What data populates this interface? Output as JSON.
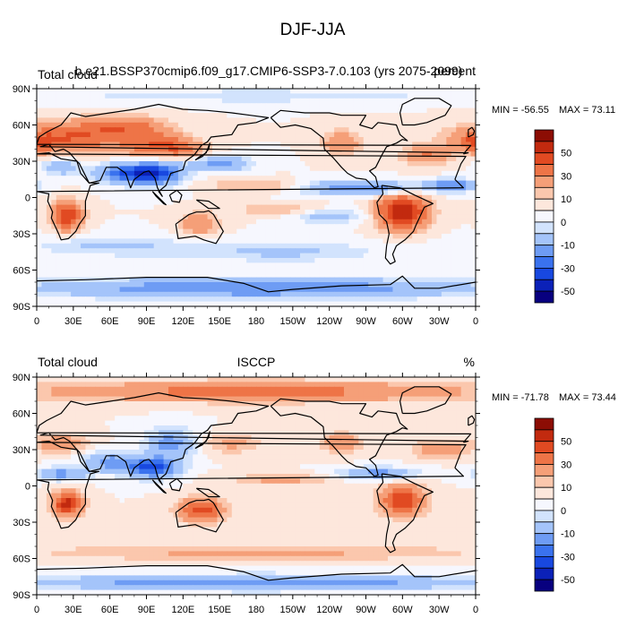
{
  "figure": {
    "title": "DJF-JJA"
  },
  "colors": {
    "land_outline": "#000000",
    "background": "#ffffff",
    "levels": [
      "#08007f",
      "#0b21b8",
      "#1848e0",
      "#3a72ee",
      "#6e9cf4",
      "#a4c4fa",
      "#d2e3fd",
      "#f6f7fe",
      "#fde7dc",
      "#fbc7ad",
      "#f59f78",
      "#ee7447",
      "#e14a22",
      "#c22a0f",
      "#8c0d04"
    ]
  },
  "colorbar": {
    "tick_labels": [
      "50",
      "30",
      "10",
      "0",
      "-10",
      "-30",
      "-50"
    ]
  },
  "axes": {
    "lat_labels": [
      "90N",
      "60N",
      "30N",
      "0",
      "30S",
      "60S",
      "90S"
    ],
    "lon_labels": [
      "0",
      "30E",
      "60E",
      "90E",
      "120E",
      "150E",
      "180",
      "150W",
      "120W",
      "90W",
      "60W",
      "30W",
      "0"
    ]
  },
  "panels": [
    {
      "left_label": "Total cloud",
      "center_label": "b.e21.BSSP370cmip6.f09_g17.CMIP6-SSP3-7.0.103 (yrs 2075-2099)",
      "right_label": "percent",
      "min_label": "MIN = -56.55",
      "max_label": "MAX =  73.11"
    },
    {
      "left_label": "Total cloud",
      "center_label": "ISCCP",
      "right_label": "%",
      "min_label": "MIN = -71.78",
      "max_label": "MAX =  73.44"
    }
  ],
  "chart_data": [
    {
      "type": "heatmap",
      "title": "Total cloud DJF-JJA, b.e21.BSSP370cmip6.f09_g17.CMIP6-SSP3-7.0.103 (yrs 2075-2099)",
      "units": "percent",
      "x_range": [
        0,
        360
      ],
      "y_range": [
        -90,
        90
      ],
      "min": -56.55,
      "max": 73.11,
      "levels": [
        -60,
        -50,
        -40,
        -30,
        -20,
        -10,
        -5,
        0,
        5,
        10,
        20,
        30,
        40,
        50,
        60
      ],
      "features": [
        {
          "lon": 30,
          "lat": 50,
          "value": 30,
          "rx": 45,
          "ry": 12
        },
        {
          "lon": 95,
          "lat": 45,
          "value": 25,
          "rx": 25,
          "ry": 12
        },
        {
          "lon": 70,
          "lat": 60,
          "value": 20,
          "rx": 30,
          "ry": 8
        },
        {
          "lon": 120,
          "lat": 40,
          "value": 20,
          "rx": 20,
          "ry": 8
        },
        {
          "lon": 0,
          "lat": 45,
          "value": 20,
          "rx": 15,
          "ry": 8
        },
        {
          "lon": 75,
          "lat": 20,
          "value": -40,
          "rx": 25,
          "ry": 8
        },
        {
          "lon": 100,
          "lat": 20,
          "value": -35,
          "rx": 20,
          "ry": 10
        },
        {
          "lon": 20,
          "lat": 25,
          "value": -20,
          "rx": 15,
          "ry": 6
        },
        {
          "lon": 150,
          "lat": 28,
          "value": -25,
          "rx": 25,
          "ry": 6
        },
        {
          "lon": 25,
          "lat": -15,
          "value": 40,
          "rx": 12,
          "ry": 12
        },
        {
          "lon": 133,
          "lat": -22,
          "value": 20,
          "rx": 15,
          "ry": 9
        },
        {
          "lon": 300,
          "lat": -12,
          "value": 50,
          "rx": 20,
          "ry": 14
        },
        {
          "lon": 250,
          "lat": 45,
          "value": 20,
          "rx": 15,
          "ry": 10
        },
        {
          "lon": 320,
          "lat": 35,
          "value": 20,
          "rx": 20,
          "ry": 8
        },
        {
          "lon": 265,
          "lat": 8,
          "value": -30,
          "rx": 45,
          "ry": 6
        },
        {
          "lon": 340,
          "lat": 10,
          "value": -30,
          "rx": 20,
          "ry": 5
        },
        {
          "lon": 240,
          "lat": -15,
          "value": -15,
          "rx": 30,
          "ry": 6
        },
        {
          "lon": 180,
          "lat": 10,
          "value": 12,
          "rx": 40,
          "ry": 5
        },
        {
          "lon": 200,
          "lat": -10,
          "value": 10,
          "rx": 40,
          "ry": 5
        },
        {
          "lon": 60,
          "lat": -40,
          "value": -12,
          "rx": 60,
          "ry": 8
        },
        {
          "lon": 200,
          "lat": -45,
          "value": -12,
          "rx": 80,
          "ry": 8
        },
        {
          "lon": 180,
          "lat": -75,
          "value": -30,
          "rx": 180,
          "ry": 8
        },
        {
          "lon": 180,
          "lat": 84,
          "value": -8,
          "rx": 180,
          "ry": 6
        }
      ]
    },
    {
      "type": "heatmap",
      "title": "Total cloud DJF-JJA, ISCCP",
      "units": "%",
      "x_range": [
        0,
        360
      ],
      "y_range": [
        -90,
        90
      ],
      "min": -71.78,
      "max": 73.44,
      "levels": [
        -60,
        -50,
        -40,
        -30,
        -20,
        -10,
        -5,
        0,
        5,
        10,
        20,
        30,
        40,
        50,
        60
      ],
      "features": [
        {
          "lon": 180,
          "lat": 78,
          "value": 25,
          "rx": 180,
          "ry": 8
        },
        {
          "lon": 25,
          "lat": -15,
          "value": 45,
          "rx": 12,
          "ry": 10
        },
        {
          "lon": 135,
          "lat": -20,
          "value": 35,
          "rx": 18,
          "ry": 10
        },
        {
          "lon": 300,
          "lat": -12,
          "value": 40,
          "rx": 18,
          "ry": 12
        },
        {
          "lon": 95,
          "lat": 15,
          "value": -45,
          "rx": 20,
          "ry": 8
        },
        {
          "lon": 110,
          "lat": 35,
          "value": -25,
          "rx": 20,
          "ry": 12
        },
        {
          "lon": 60,
          "lat": 20,
          "value": -25,
          "rx": 20,
          "ry": 8
        },
        {
          "lon": 20,
          "lat": 10,
          "value": -25,
          "rx": 20,
          "ry": 5
        },
        {
          "lon": 20,
          "lat": 35,
          "value": 20,
          "rx": 20,
          "ry": 7
        },
        {
          "lon": 330,
          "lat": 30,
          "value": 20,
          "rx": 20,
          "ry": 7
        },
        {
          "lon": 250,
          "lat": 35,
          "value": 20,
          "rx": 15,
          "ry": 8
        },
        {
          "lon": 160,
          "lat": 35,
          "value": 12,
          "rx": 25,
          "ry": 8
        },
        {
          "lon": 280,
          "lat": 10,
          "value": -25,
          "rx": 30,
          "ry": 5
        },
        {
          "lon": 200,
          "lat": 5,
          "value": 12,
          "rx": 40,
          "ry": 5
        },
        {
          "lon": 180,
          "lat": -55,
          "value": 12,
          "rx": 180,
          "ry": 7
        },
        {
          "lon": 180,
          "lat": -80,
          "value": -30,
          "rx": 180,
          "ry": 6
        }
      ]
    }
  ]
}
